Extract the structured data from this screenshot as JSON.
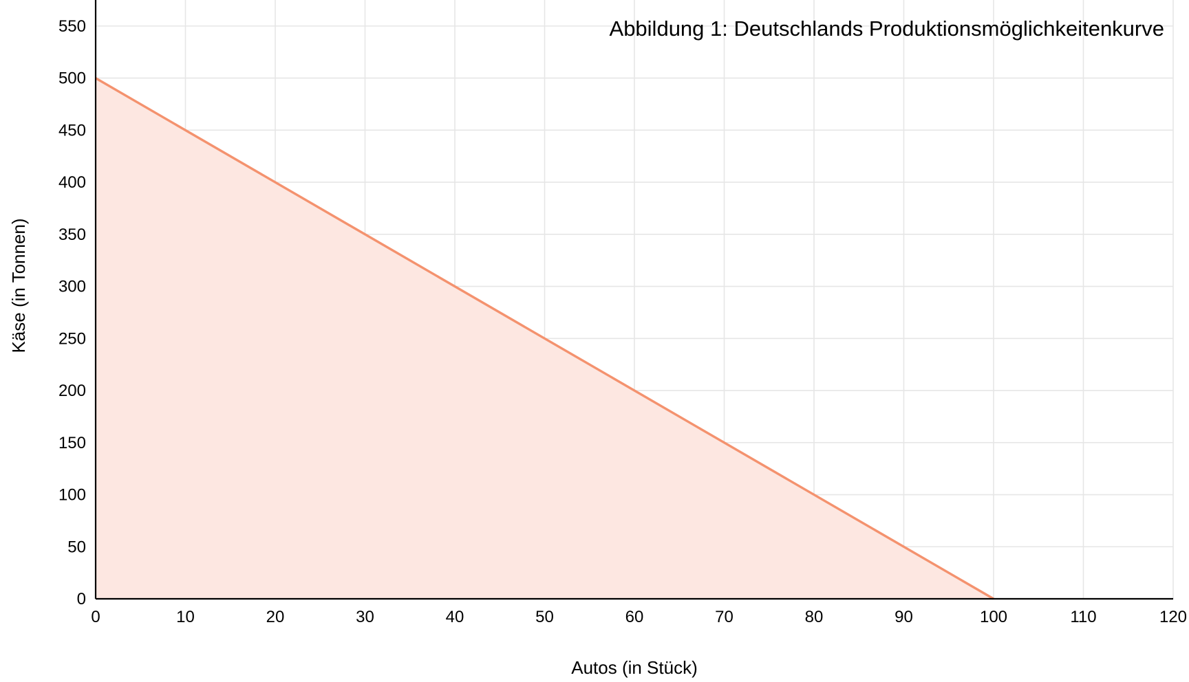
{
  "chart_data": {
    "type": "area",
    "title": "Abbildung 1: Deutschlands Produktionsmöglichkeitenkurve",
    "xlabel": "Autos (in Stück)",
    "ylabel": "Käse (in Tonnen)",
    "xlim": [
      0,
      120
    ],
    "ylim": [
      0,
      575
    ],
    "x_ticks": [
      0,
      10,
      20,
      30,
      40,
      50,
      60,
      70,
      80,
      90,
      100,
      110,
      120
    ],
    "y_ticks": [
      0,
      50,
      100,
      150,
      200,
      250,
      300,
      350,
      400,
      450,
      500,
      550
    ],
    "grid": true,
    "series": [
      {
        "x": [
          0,
          100
        ],
        "y": [
          500,
          0
        ],
        "line_color": "#f4926e",
        "fill_color": "#fde7e1"
      }
    ]
  }
}
